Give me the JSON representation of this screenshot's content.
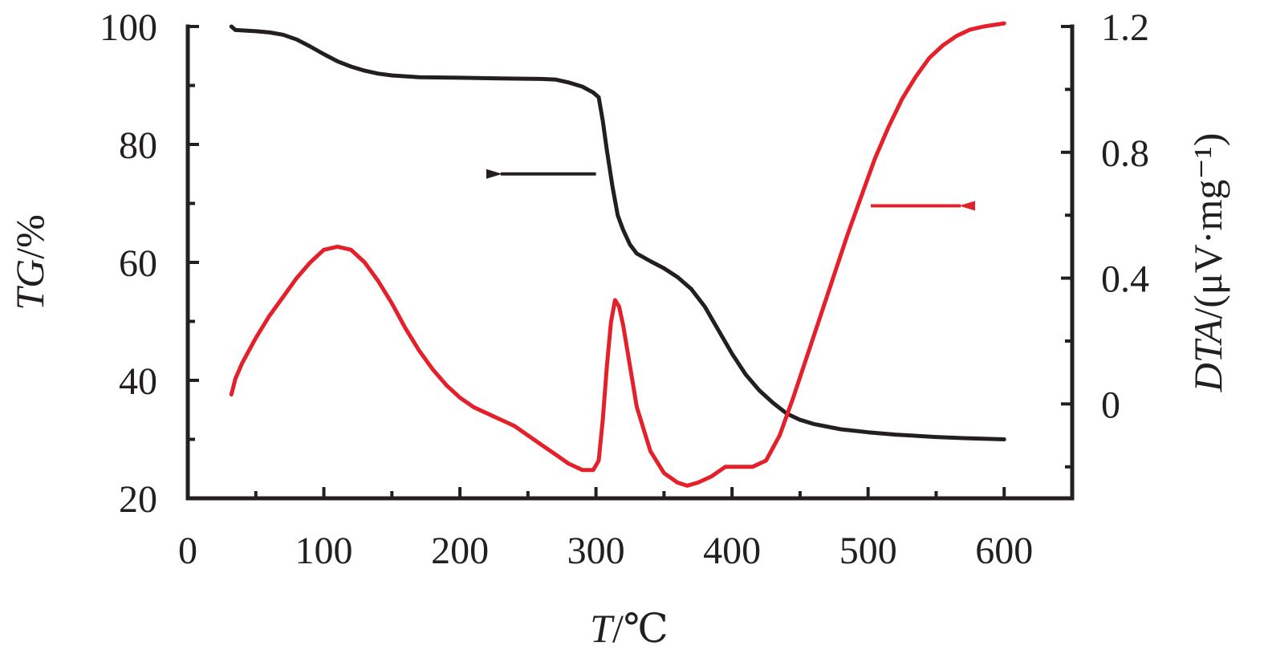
{
  "chart_data": {
    "type": "line",
    "x_axis": {
      "label": "T/℃",
      "label_var": "T",
      "label_unit": "/℃",
      "range": [
        0,
        650
      ],
      "ticks": [
        0,
        100,
        200,
        300,
        400,
        500,
        600
      ],
      "tick_labels": [
        "0",
        "100",
        "200",
        "300",
        "400",
        "500",
        "600"
      ],
      "minor_step": 50
    },
    "y_axis_left": {
      "label": "TG/%",
      "label_var": "TG",
      "label_unit": "/%",
      "range": [
        20,
        100
      ],
      "ticks": [
        20,
        40,
        60,
        80,
        100
      ],
      "tick_labels": [
        "20",
        "40",
        "60",
        "80",
        "100"
      ],
      "minor_step": 10
    },
    "y_axis_right": {
      "label": "DTA/(μV·mg⁻¹)",
      "label_var": "DTA",
      "label_unit": "/(μV·mg⁻¹)",
      "range": [
        -0.3,
        1.2
      ],
      "ticks": [
        0,
        0.4,
        0.8,
        1.2
      ],
      "tick_labels": [
        "0",
        "0.4",
        "0.8",
        "1.2"
      ],
      "minor_ticks": [
        -0.2,
        0.2,
        0.6,
        1.0
      ]
    },
    "grid": false,
    "series": [
      {
        "axis": "left",
        "color": "#231f20",
        "points": [
          [
            32,
            100
          ],
          [
            35,
            99.4
          ],
          [
            50,
            99.2
          ],
          [
            60,
            99
          ],
          [
            70,
            98.6
          ],
          [
            80,
            97.8
          ],
          [
            90,
            96.6
          ],
          [
            100,
            95.3
          ],
          [
            110,
            94.1
          ],
          [
            120,
            93.2
          ],
          [
            130,
            92.5
          ],
          [
            140,
            92
          ],
          [
            150,
            91.7
          ],
          [
            170,
            91.4
          ],
          [
            200,
            91.3
          ],
          [
            230,
            91.2
          ],
          [
            260,
            91.1
          ],
          [
            270,
            91
          ],
          [
            280,
            90.5
          ],
          [
            290,
            89.8
          ],
          [
            298,
            88.8
          ],
          [
            302,
            88
          ],
          [
            305,
            84
          ],
          [
            308,
            79
          ],
          [
            312,
            73
          ],
          [
            316,
            68
          ],
          [
            320,
            65.5
          ],
          [
            325,
            63
          ],
          [
            330,
            61.5
          ],
          [
            340,
            60.2
          ],
          [
            350,
            59
          ],
          [
            360,
            57.5
          ],
          [
            370,
            55.5
          ],
          [
            380,
            52.5
          ],
          [
            390,
            48.5
          ],
          [
            400,
            44.5
          ],
          [
            410,
            41
          ],
          [
            420,
            38.3
          ],
          [
            430,
            36.2
          ],
          [
            440,
            34.4
          ],
          [
            450,
            33.3
          ],
          [
            460,
            32.6
          ],
          [
            480,
            31.7
          ],
          [
            500,
            31.2
          ],
          [
            520,
            30.8
          ],
          [
            550,
            30.4
          ],
          [
            570,
            30.2
          ],
          [
            600,
            30
          ]
        ]
      },
      {
        "axis": "right",
        "color": "#e4202a",
        "points": [
          [
            32,
            0.03
          ],
          [
            35,
            0.08
          ],
          [
            40,
            0.13
          ],
          [
            50,
            0.21
          ],
          [
            60,
            0.28
          ],
          [
            70,
            0.34
          ],
          [
            80,
            0.4
          ],
          [
            90,
            0.45
          ],
          [
            100,
            0.49
          ],
          [
            110,
            0.5
          ],
          [
            120,
            0.49
          ],
          [
            130,
            0.45
          ],
          [
            140,
            0.39
          ],
          [
            150,
            0.32
          ],
          [
            160,
            0.24
          ],
          [
            170,
            0.17
          ],
          [
            180,
            0.11
          ],
          [
            190,
            0.06
          ],
          [
            200,
            0.02
          ],
          [
            210,
            -0.01
          ],
          [
            220,
            -0.03
          ],
          [
            230,
            -0.05
          ],
          [
            240,
            -0.07
          ],
          [
            250,
            -0.1
          ],
          [
            260,
            -0.13
          ],
          [
            270,
            -0.16
          ],
          [
            280,
            -0.19
          ],
          [
            290,
            -0.21
          ],
          [
            298,
            -0.21
          ],
          [
            302,
            -0.18
          ],
          [
            305,
            -0.05
          ],
          [
            308,
            0.12
          ],
          [
            311,
            0.26
          ],
          [
            314,
            0.33
          ],
          [
            317,
            0.31
          ],
          [
            320,
            0.25
          ],
          [
            325,
            0.12
          ],
          [
            330,
            -0.01
          ],
          [
            340,
            -0.15
          ],
          [
            350,
            -0.22
          ],
          [
            360,
            -0.25
          ],
          [
            367,
            -0.26
          ],
          [
            375,
            -0.25
          ],
          [
            385,
            -0.23
          ],
          [
            395,
            -0.2
          ],
          [
            405,
            -0.2
          ],
          [
            415,
            -0.2
          ],
          [
            425,
            -0.18
          ],
          [
            435,
            -0.1
          ],
          [
            445,
            0.02
          ],
          [
            455,
            0.15
          ],
          [
            465,
            0.28
          ],
          [
            475,
            0.41
          ],
          [
            485,
            0.54
          ],
          [
            495,
            0.66
          ],
          [
            505,
            0.78
          ],
          [
            515,
            0.88
          ],
          [
            525,
            0.97
          ],
          [
            535,
            1.04
          ],
          [
            545,
            1.1
          ],
          [
            555,
            1.14
          ],
          [
            565,
            1.17
          ],
          [
            575,
            1.19
          ],
          [
            585,
            1.2
          ],
          [
            600,
            1.21
          ]
        ]
      }
    ],
    "annotations": [
      {
        "type": "arrow",
        "direction": "left",
        "color": "#231f20",
        "axis": "left",
        "x_from": 300,
        "x_to": 230,
        "y": 75
      },
      {
        "type": "arrow",
        "direction": "right",
        "color": "#e4202a",
        "axis": "right",
        "x_from": 502,
        "x_to": 568,
        "y": 0.63
      }
    ]
  }
}
